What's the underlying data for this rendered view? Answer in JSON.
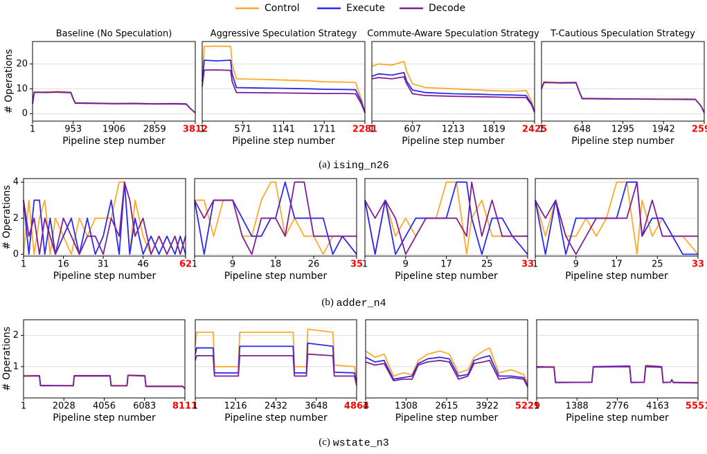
{
  "highlight_color": "#ff0000",
  "grid_color": "#dddddd",
  "legend": [
    {
      "name": "Control",
      "color": "#ffa92b"
    },
    {
      "name": "Execute",
      "color": "#2828f0"
    },
    {
      "name": "Decode",
      "color": "#7f1f94"
    }
  ],
  "captions": [
    {
      "tag": "(a)",
      "name": "ising_n26"
    },
    {
      "tag": "(b)",
      "name": "adder_n4"
    },
    {
      "tag": "(c)",
      "name": "wstate_n3"
    }
  ],
  "chart_data": [
    {
      "type": "line",
      "title": "Baseline (No Speculation)",
      "xlabel": "Pipeline step number",
      "ylabel": "# Operations",
      "x": [
        1,
        40,
        300,
        600,
        900,
        953,
        1000,
        1400,
        1906,
        2400,
        2859,
        3300,
        3600,
        3700,
        3812
      ],
      "series": [
        {
          "values": [
            4,
            8.8,
            8.7,
            8.9,
            8.6,
            6,
            4.4,
            4.3,
            4.1,
            4.2,
            4.0,
            4.1,
            4.0,
            2,
            0.4
          ]
        },
        {
          "values": [
            4,
            8.6,
            8.5,
            8.7,
            8.5,
            6,
            4.3,
            4.2,
            4.0,
            4.1,
            3.9,
            4.0,
            3.9,
            2,
            0.3
          ]
        },
        {
          "values": [
            4,
            8.5,
            8.6,
            8.6,
            8.4,
            6,
            4.2,
            4.1,
            4.0,
            4.0,
            3.9,
            3.9,
            3.8,
            2,
            0.3
          ]
        }
      ],
      "xlim": [
        1,
        3812
      ],
      "xticks": [
        1,
        953,
        1906,
        2859,
        3812
      ],
      "ylim": [
        -3,
        29
      ],
      "yticks": [
        0,
        10,
        20
      ],
      "grid": true
    },
    {
      "type": "line",
      "title": "Aggressive Speculation Strategy",
      "xlabel": "Pipeline step number",
      "x": [
        1,
        30,
        200,
        400,
        420,
        480,
        800,
        1141,
        1500,
        1711,
        2000,
        2150,
        2230,
        2281
      ],
      "series": [
        {
          "values": [
            15,
            27,
            27.2,
            27,
            20,
            14,
            13.8,
            13.5,
            13.2,
            12.8,
            12.7,
            12.5,
            6,
            0.5
          ]
        },
        {
          "values": [
            13,
            21.5,
            21.2,
            21.5,
            16,
            10.5,
            10.3,
            10.2,
            10,
            9.8,
            9.7,
            9.6,
            5,
            0.4
          ]
        },
        {
          "values": [
            11,
            17.5,
            17.6,
            17.4,
            13,
            8.5,
            8.4,
            8.3,
            8.2,
            8.1,
            8.1,
            8,
            4,
            0.3
          ]
        }
      ],
      "xlim": [
        1,
        2281
      ],
      "xticks": [
        1,
        571,
        1141,
        1711,
        2281
      ],
      "ylim": [
        -3,
        29
      ],
      "yticks": [
        0,
        10,
        20
      ],
      "grid": true
    },
    {
      "type": "line",
      "title": "Commute-Aware Speculation Strategy",
      "xlabel": "Pipeline step number",
      "x": [
        1,
        100,
        300,
        480,
        520,
        607,
        800,
        1213,
        1600,
        1819,
        2100,
        2300,
        2380,
        2425
      ],
      "series": [
        {
          "values": [
            19,
            20,
            19.5,
            21,
            17,
            12,
            10.5,
            10,
            9.5,
            9.2,
            9,
            9.3,
            5,
            1
          ]
        },
        {
          "values": [
            15,
            16,
            15.5,
            16.5,
            13,
            9.5,
            8.5,
            8,
            7.8,
            7.6,
            7.5,
            7.3,
            4,
            0.8
          ]
        },
        {
          "values": [
            14,
            14.5,
            14,
            14.8,
            12,
            8,
            7.3,
            7,
            6.8,
            6.7,
            6.5,
            6.5,
            3.5,
            0.5
          ]
        }
      ],
      "xlim": [
        1,
        2425
      ],
      "xticks": [
        1,
        607,
        1213,
        1819,
        2425
      ],
      "ylim": [
        -3,
        29
      ],
      "yticks": [
        0,
        10,
        20
      ],
      "grid": true
    },
    {
      "type": "line",
      "title": "T-Cautious Speculation Strategy",
      "xlabel": "Pipeline step number",
      "x": [
        1,
        40,
        300,
        550,
        600,
        648,
        1000,
        1295,
        1942,
        2300,
        2450,
        2540,
        2590
      ],
      "series": [
        {
          "values": [
            10,
            12.8,
            12.5,
            12.6,
            9,
            6.2,
            6.1,
            6,
            5.9,
            5.9,
            5.8,
            3,
            0.5
          ]
        },
        {
          "values": [
            10,
            12.5,
            12.4,
            12.5,
            9,
            6.0,
            6.0,
            5.9,
            5.8,
            5.8,
            5.7,
            3,
            0.4
          ]
        },
        {
          "values": [
            10,
            12.6,
            12.3,
            12.4,
            9,
            6.1,
            5.9,
            5.9,
            5.8,
            5.7,
            5.7,
            3,
            0.4
          ]
        }
      ],
      "xlim": [
        1,
        2590
      ],
      "xticks": [
        1,
        648,
        1295,
        1942,
        2590
      ],
      "ylim": [
        -3,
        29
      ],
      "yticks": [
        0,
        10,
        20
      ],
      "grid": true
    },
    {
      "type": "line",
      "xlabel": "Pipeline step number",
      "ylabel": "# Operations",
      "x": [
        1,
        3,
        5,
        7,
        9,
        11,
        13,
        16,
        19,
        22,
        25,
        28,
        31,
        34,
        37,
        39,
        41,
        43,
        46,
        49,
        52,
        55,
        58,
        60,
        62
      ],
      "series": [
        {
          "values": [
            0,
            3,
            0,
            2,
            3,
            0,
            2,
            1,
            0,
            2,
            1,
            2,
            2,
            2,
            4,
            4,
            0,
            3,
            1,
            0,
            1,
            0,
            1,
            0,
            1
          ]
        },
        {
          "values": [
            3,
            0,
            3,
            3,
            0,
            2,
            0,
            1,
            2,
            0,
            2,
            0,
            1,
            3,
            0,
            4,
            0,
            2,
            0,
            1,
            0,
            1,
            0,
            1,
            0
          ]
        },
        {
          "values": [
            3,
            1,
            2,
            0,
            2,
            1,
            0,
            2,
            1,
            0,
            1,
            1,
            0,
            2,
            1,
            4,
            3,
            1,
            2,
            0,
            1,
            0,
            1,
            0,
            1
          ]
        }
      ],
      "xlim": [
        1,
        62
      ],
      "xticks": [
        1,
        16,
        31,
        46,
        62
      ],
      "ylim": [
        -0.1,
        4.2
      ],
      "yticks": [
        0,
        2,
        4
      ],
      "grid": true
    },
    {
      "type": "line",
      "xlabel": "Pipeline step number",
      "x": [
        1,
        3,
        5,
        7,
        9,
        11,
        13,
        15,
        17,
        18,
        20,
        22,
        24,
        26,
        28,
        30,
        32,
        35
      ],
      "series": [
        {
          "values": [
            3,
            3,
            1,
            3,
            3,
            1,
            1,
            3,
            4,
            4,
            1,
            2,
            1,
            1,
            0,
            1,
            1,
            0
          ]
        },
        {
          "values": [
            3,
            0,
            3,
            3,
            3,
            2,
            1,
            1,
            2,
            2,
            4,
            2,
            2,
            2,
            2,
            0,
            1,
            0
          ]
        },
        {
          "values": [
            3,
            2,
            3,
            3,
            3,
            1,
            0,
            2,
            2,
            2,
            1,
            4,
            4,
            1,
            1,
            1,
            1,
            1
          ]
        }
      ],
      "xlim": [
        1,
        35
      ],
      "xticks": [
        1,
        9,
        18,
        26,
        35
      ],
      "ylim": [
        -0.1,
        4.2
      ],
      "yticks": [
        0,
        2,
        4
      ],
      "grid": true
    },
    {
      "type": "line",
      "xlabel": "Pipeline step number",
      "x": [
        1,
        3,
        5,
        7,
        9,
        11,
        13,
        15,
        17,
        19,
        21,
        22,
        24,
        26,
        28,
        30,
        33
      ],
      "series": [
        {
          "values": [
            3,
            0,
            3,
            1,
            2,
            1,
            2,
            2,
            4,
            4,
            0,
            2,
            3,
            1,
            1,
            1,
            1
          ]
        },
        {
          "values": [
            3,
            0,
            3,
            0,
            1,
            2,
            2,
            2,
            2,
            4,
            4,
            2,
            0,
            2,
            2,
            1,
            0
          ]
        },
        {
          "values": [
            3,
            2,
            3,
            2,
            0,
            1,
            2,
            2,
            2,
            2,
            1,
            4,
            1,
            3,
            1,
            1,
            1
          ]
        }
      ],
      "xlim": [
        1,
        33
      ],
      "xticks": [
        1,
        9,
        17,
        25,
        33
      ],
      "ylim": [
        -0.1,
        4.2
      ],
      "yticks": [
        0,
        2,
        4
      ],
      "grid": true
    },
    {
      "type": "line",
      "xlabel": "Pipeline step number",
      "x": [
        1,
        3,
        5,
        7,
        9,
        11,
        13,
        15,
        17,
        19,
        21,
        22,
        24,
        26,
        28,
        30,
        33
      ],
      "series": [
        {
          "values": [
            3,
            1,
            3,
            1,
            1,
            2,
            1,
            2,
            4,
            4,
            0,
            3,
            1,
            2,
            1,
            1,
            0
          ]
        },
        {
          "values": [
            3,
            0,
            3,
            0,
            2,
            2,
            2,
            2,
            2,
            4,
            4,
            1,
            2,
            2,
            1,
            0,
            0
          ]
        },
        {
          "values": [
            3,
            2,
            3,
            1,
            0,
            1,
            2,
            2,
            2,
            2,
            4,
            1,
            3,
            1,
            1,
            1,
            1
          ]
        }
      ],
      "xlim": [
        1,
        33
      ],
      "xticks": [
        1,
        9,
        17,
        25,
        33
      ],
      "ylim": [
        -0.1,
        4.2
      ],
      "yticks": [
        0,
        2,
        4
      ],
      "grid": true
    },
    {
      "type": "line",
      "xlabel": "Pipeline step number",
      "ylabel": "# Operations",
      "x": [
        1,
        800,
        850,
        2500,
        2550,
        4350,
        4400,
        5200,
        5250,
        6100,
        6150,
        8000,
        8111
      ],
      "series": [
        {
          "values": [
            0.72,
            0.72,
            0.4,
            0.4,
            0.72,
            0.72,
            0.4,
            0.4,
            0.74,
            0.72,
            0.38,
            0.38,
            0.3
          ]
        },
        {
          "values": [
            0.7,
            0.71,
            0.4,
            0.39,
            0.71,
            0.71,
            0.39,
            0.39,
            0.72,
            0.71,
            0.37,
            0.37,
            0.3
          ]
        },
        {
          "values": [
            0.7,
            0.7,
            0.39,
            0.39,
            0.7,
            0.7,
            0.39,
            0.39,
            0.72,
            0.7,
            0.37,
            0.37,
            0.3
          ]
        }
      ],
      "xlim": [
        1,
        8111
      ],
      "xticks": [
        1,
        2028,
        4056,
        6083,
        8111
      ],
      "ylim": [
        0,
        2.5
      ],
      "yticks": [
        1,
        2
      ],
      "grid": true
    },
    {
      "type": "line",
      "xlabel": "Pipeline step number",
      "x": [
        1,
        40,
        540,
        580,
        1300,
        1340,
        2950,
        2990,
        3350,
        3390,
        4150,
        4190,
        4800,
        4864
      ],
      "series": [
        {
          "values": [
            1.7,
            2.1,
            2.1,
            1.0,
            1.0,
            2.1,
            2.1,
            1.0,
            1.0,
            2.2,
            2.1,
            1.05,
            1.0,
            0.6
          ]
        },
        {
          "values": [
            1.4,
            1.6,
            1.6,
            0.8,
            0.8,
            1.65,
            1.65,
            0.8,
            0.8,
            1.75,
            1.65,
            0.82,
            0.8,
            0.5
          ]
        },
        {
          "values": [
            1.2,
            1.35,
            1.35,
            0.7,
            0.7,
            1.35,
            1.35,
            0.7,
            0.7,
            1.4,
            1.35,
            0.7,
            0.7,
            0.4
          ]
        }
      ],
      "xlim": [
        1,
        4864
      ],
      "xticks": [
        1,
        1216,
        2432,
        3648,
        4864
      ],
      "ylim": [
        0,
        2.5
      ],
      "yticks": [
        1,
        2
      ],
      "grid": true
    },
    {
      "type": "line",
      "xlabel": "Pipeline step number",
      "x": [
        1,
        300,
        600,
        900,
        1200,
        1500,
        1700,
        2000,
        2400,
        2700,
        3000,
        3300,
        3500,
        3800,
        4000,
        4300,
        4700,
        5100,
        5229
      ],
      "series": [
        {
          "values": [
            1.5,
            1.3,
            1.4,
            0.7,
            0.8,
            0.75,
            1.2,
            1.4,
            1.5,
            1.4,
            0.8,
            0.9,
            1.3,
            1.5,
            1.6,
            0.8,
            0.9,
            0.75,
            0.5
          ]
        },
        {
          "values": [
            1.3,
            1.15,
            1.2,
            0.6,
            0.65,
            0.7,
            1.1,
            1.25,
            1.3,
            1.25,
            0.7,
            0.75,
            1.2,
            1.3,
            1.35,
            0.7,
            0.7,
            0.65,
            0.4
          ]
        },
        {
          "values": [
            1.15,
            1.05,
            1.1,
            0.55,
            0.6,
            0.6,
            1.05,
            1.15,
            1.2,
            1.15,
            0.6,
            0.7,
            1.1,
            1.15,
            1.2,
            0.6,
            0.65,
            0.6,
            0.35
          ]
        }
      ],
      "xlim": [
        1,
        5229
      ],
      "xticks": [
        1,
        1308,
        2615,
        3922,
        5229
      ],
      "ylim": [
        0,
        2.5
      ],
      "yticks": [
        1,
        2
      ],
      "grid": true
    },
    {
      "type": "line",
      "xlabel": "Pipeline step number",
      "x": [
        1,
        600,
        650,
        1900,
        1950,
        3200,
        3250,
        3700,
        3750,
        4300,
        4350,
        4600,
        4650,
        4700,
        5551
      ],
      "series": [
        {
          "values": [
            1.0,
            1.0,
            0.5,
            0.5,
            1.0,
            1.0,
            0.5,
            0.5,
            1.05,
            1.0,
            0.5,
            0.5,
            0.6,
            0.5,
            0.5
          ]
        },
        {
          "values": [
            1.0,
            0.98,
            0.5,
            0.5,
            1.0,
            1.02,
            0.5,
            0.5,
            1.02,
            1.0,
            0.5,
            0.5,
            0.58,
            0.5,
            0.48
          ]
        },
        {
          "values": [
            0.98,
            0.99,
            0.49,
            0.5,
            0.99,
            1.0,
            0.49,
            0.5,
            1.0,
            0.98,
            0.49,
            0.5,
            0.57,
            0.49,
            0.48
          ]
        }
      ],
      "xlim": [
        1,
        5551
      ],
      "xticks": [
        1,
        1388,
        2776,
        4163,
        5551
      ],
      "ylim": [
        0,
        2.5
      ],
      "yticks": [
        1,
        2
      ],
      "grid": true
    }
  ]
}
